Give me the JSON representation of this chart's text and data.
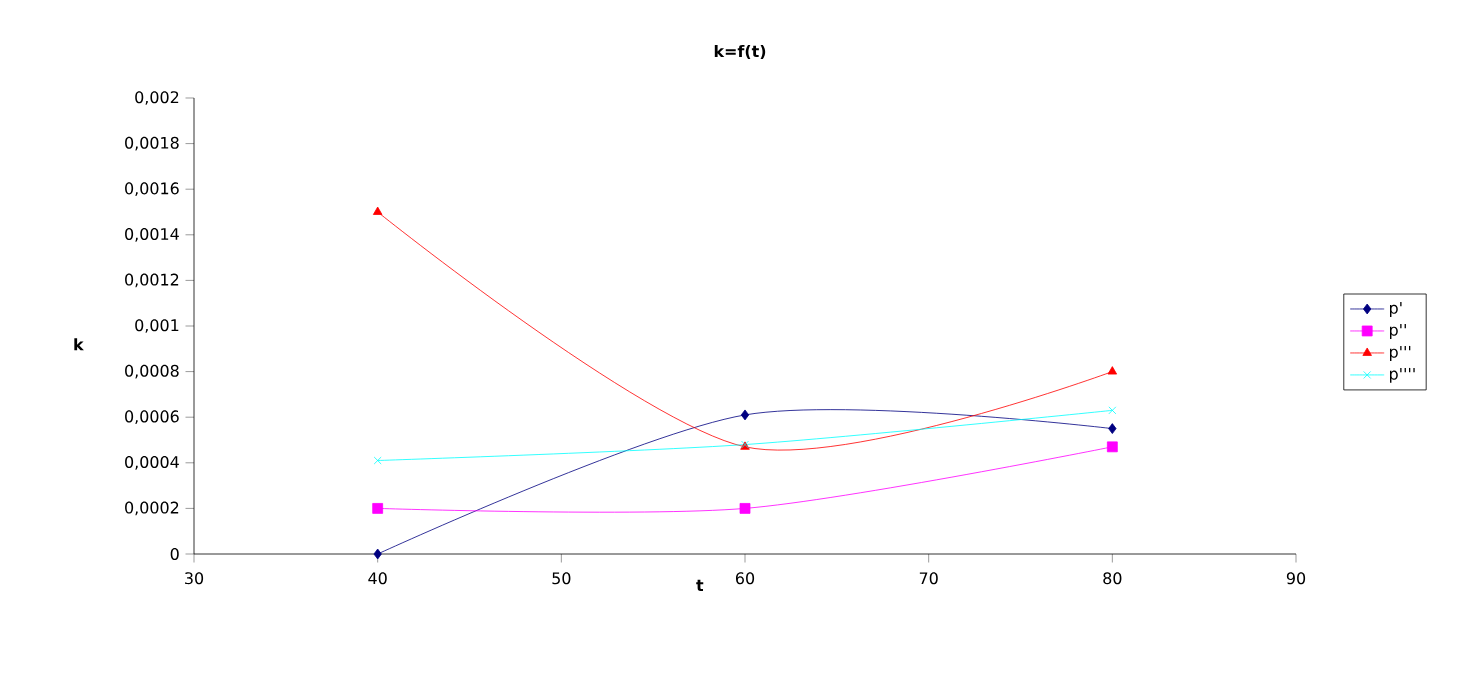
{
  "chart_data": {
    "type": "line",
    "title": "k=f(t)",
    "xlabel": "t",
    "ylabel": "k",
    "x": [
      40,
      60,
      80
    ],
    "series": [
      {
        "name": "p'",
        "color": "#000080",
        "values": [
          0,
          0.00061,
          0.00055
        ],
        "marker": "diamond"
      },
      {
        "name": "p''",
        "color": "#ff00ff",
        "values": [
          0.0002,
          0.0002,
          0.00047
        ],
        "marker": "square"
      },
      {
        "name": "p'''",
        "color": "#ff0000",
        "values": [
          0.0015,
          0.00047,
          0.0008
        ],
        "marker": "triangle"
      },
      {
        "name": "p''''",
        "color": "#00ffff",
        "values": [
          0.00041,
          0.00048,
          0.00063
        ],
        "marker": "cross"
      }
    ],
    "xlim": [
      30,
      90
    ],
    "xticks": [
      30,
      40,
      50,
      60,
      70,
      80,
      90
    ],
    "ylim": [
      0,
      0.002
    ],
    "yticks": [
      0,
      {
        "value": 0.0002,
        "label": "0,0002"
      },
      {
        "value": 0.0004,
        "label": "0,0004"
      },
      {
        "value": 0.0006,
        "label": "0,0006"
      },
      {
        "value": 0.0008,
        "label": "0,0008"
      },
      {
        "value": 0.001,
        "label": "0,001"
      },
      {
        "value": 0.0012,
        "label": "0,0012"
      },
      {
        "value": 0.0014,
        "label": "0,0014"
      },
      {
        "value": 0.0016,
        "label": "0,0016"
      },
      {
        "value": 0.0018,
        "label": "0,0018"
      },
      {
        "value": 0.002,
        "label": "0,002"
      }
    ],
    "legend": "right",
    "grid": false,
    "line_style": "solid"
  }
}
